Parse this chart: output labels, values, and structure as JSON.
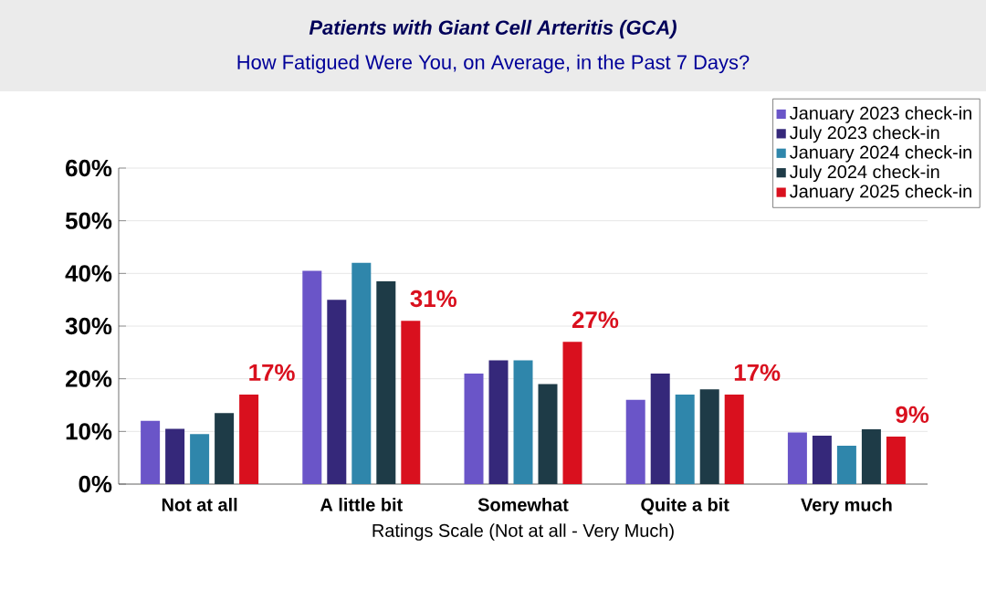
{
  "chart_data": {
    "type": "bar",
    "title": "Patients with Giant Cell Arteritis (GCA)",
    "subtitle": "How Fatigued Were You, on Average, in the Past 7 Days?",
    "xlabel": "Ratings Scale (Not at all - Very Much)",
    "categories": [
      "Not at all",
      "A little bit",
      "Somewhat",
      "Quite a bit",
      "Very much"
    ],
    "series": [
      {
        "name": "January 2023 check-in",
        "color": "#6a55c8",
        "values": [
          12,
          40.5,
          21,
          16,
          9.8
        ]
      },
      {
        "name": "July 2023 check-in",
        "color": "#35287a",
        "values": [
          10.5,
          35,
          23.5,
          21,
          9.2
        ]
      },
      {
        "name": "January 2024 check-in",
        "color": "#2f86ab",
        "values": [
          9.5,
          42,
          23.5,
          17,
          7.3
        ]
      },
      {
        "name": "July 2024 check-in",
        "color": "#1e3b47",
        "values": [
          13.5,
          38.5,
          19,
          18,
          10.4
        ]
      },
      {
        "name": "January 2025 check-in",
        "color": "#d9101e",
        "values": [
          17,
          31,
          27,
          17,
          9
        ],
        "value_labels": [
          "17%",
          "31%",
          "27%",
          "17%",
          "9%"
        ]
      }
    ],
    "ylim": [
      0,
      60
    ],
    "yticks": [
      {
        "value": 0,
        "label": "0%"
      },
      {
        "value": 10,
        "label": "10%"
      },
      {
        "value": 20,
        "label": "20%"
      },
      {
        "value": 30,
        "label": "30%"
      },
      {
        "value": 40,
        "label": "40%"
      },
      {
        "value": 50,
        "label": "50%"
      },
      {
        "value": 60,
        "label": "60%"
      }
    ],
    "grid": "y",
    "legend": "top right"
  }
}
